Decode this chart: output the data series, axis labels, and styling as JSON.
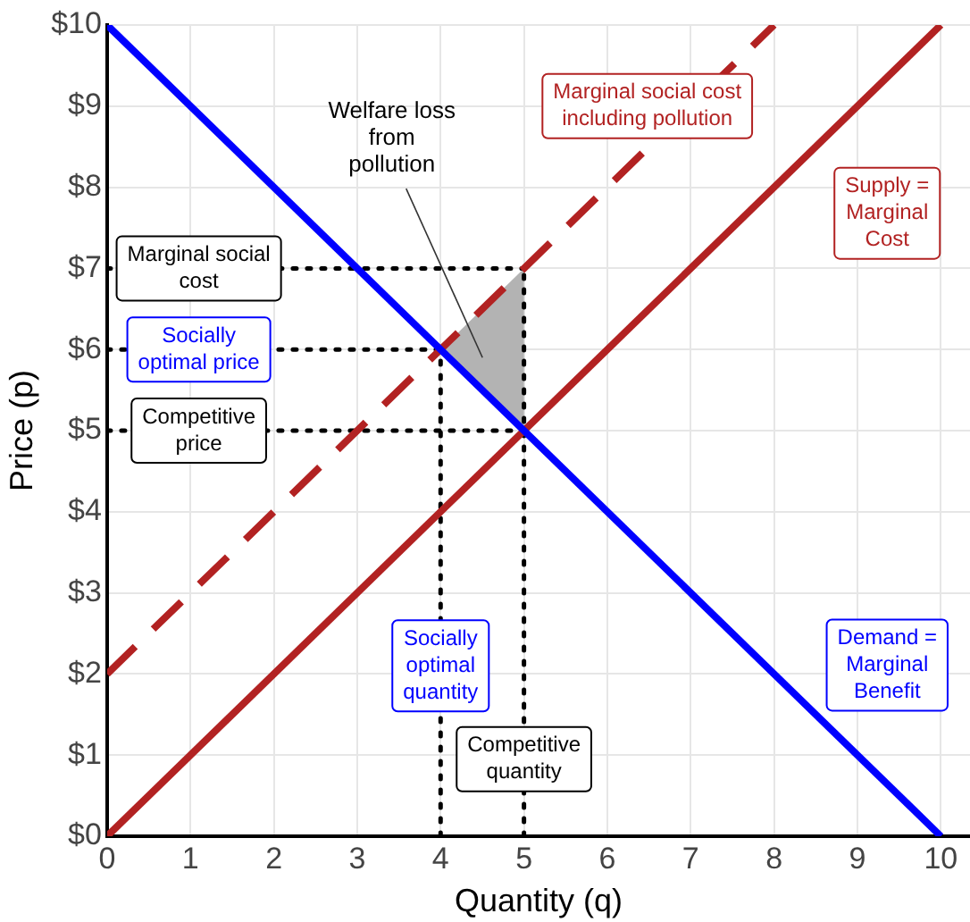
{
  "chart_data": {
    "type": "line",
    "xlabel": "Quantity (q)",
    "ylabel": "Price (p)",
    "xlim": [
      0,
      10.35
    ],
    "xticks": [
      0,
      1,
      2,
      3,
      4,
      5,
      6,
      7,
      8,
      9,
      10
    ],
    "ylim": [
      0,
      10
    ],
    "yticks": [
      {
        "value": 0,
        "label": "$0"
      },
      {
        "value": 1,
        "label": "$1"
      },
      {
        "value": 2,
        "label": "$2"
      },
      {
        "value": 3,
        "label": "$3"
      },
      {
        "value": 4,
        "label": "$4"
      },
      {
        "value": 5,
        "label": "$5"
      },
      {
        "value": 6,
        "label": "$6"
      },
      {
        "value": 7,
        "label": "$7"
      },
      {
        "value": 8,
        "label": "$8"
      },
      {
        "value": 9,
        "label": "$9"
      },
      {
        "value": 10,
        "label": "$10"
      }
    ],
    "grid": true,
    "legend": false,
    "marker": "none",
    "series": [
      {
        "name": "Demand = Marginal Benefit",
        "color": "#0000ff",
        "x": [
          0,
          10
        ],
        "values": [
          10,
          0
        ],
        "line_style": "solid"
      },
      {
        "name": "Supply = Marginal Cost",
        "color": "#b22222",
        "x": [
          0,
          10
        ],
        "values": [
          0,
          10
        ],
        "line_style": "solid"
      },
      {
        "name": "Marginal social cost including pollution",
        "color": "#b22222",
        "x": [
          0,
          8
        ],
        "values": [
          2,
          10
        ],
        "line_style": "dashed"
      },
      {
        "color": "#000000",
        "x": [
          0,
          5
        ],
        "values": [
          7,
          7
        ],
        "line_style": "dotted"
      },
      {
        "color": "#000000",
        "x": [
          0,
          4
        ],
        "values": [
          6,
          6
        ],
        "line_style": "dotted"
      },
      {
        "color": "#000000",
        "x": [
          0,
          5
        ],
        "values": [
          5,
          5
        ],
        "line_style": "dotted"
      },
      {
        "color": "#000000",
        "x": [
          4,
          4
        ],
        "values": [
          0,
          6
        ],
        "line_style": "dotted"
      },
      {
        "color": "#000000",
        "x": [
          5,
          5
        ],
        "values": [
          0,
          7
        ],
        "line_style": "dotted"
      },
      {
        "type": "area",
        "color": "#b3b3b3",
        "x": [
          4,
          5,
          5
        ],
        "values": [
          6,
          7,
          5
        ]
      }
    ],
    "annotations": [
      {
        "text": "Marginal social cost",
        "x": 1.1,
        "y": 7
      },
      {
        "text": "Socially optimal price",
        "x": 1.1,
        "y": 6
      },
      {
        "text": "Competitive price",
        "x": 1.1,
        "y": 5
      },
      {
        "text": "Socially optimal quantity",
        "x": 4,
        "y": 2.1
      },
      {
        "text": "Competitive quantity",
        "x": 5,
        "y": 0.95
      },
      "Welfare loss from pollution"
    ]
  }
}
